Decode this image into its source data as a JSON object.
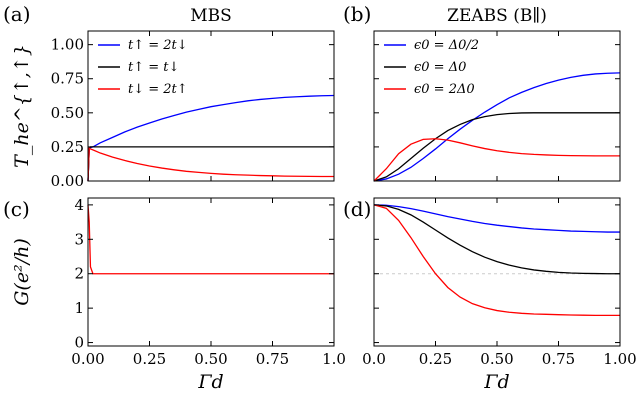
{
  "chart_data": [
    {
      "panel": "a",
      "panel_label": "(a)",
      "type": "line",
      "title": "MBS",
      "ylabel": "T_he^{↑,↑}",
      "xlabel": "",
      "xlim": [
        0,
        1
      ],
      "ylim": [
        0,
        1.1
      ],
      "xticks": [
        0,
        0.25,
        0.5,
        0.75,
        1.0
      ],
      "yticks": [
        0,
        0.25,
        0.5,
        0.75,
        1.0
      ],
      "ytick_labels": [
        "0.00",
        "0.25",
        "0.50",
        "0.75",
        "1.00"
      ],
      "xtick_labels": [],
      "legend_position": "top-left",
      "series": [
        {
          "name": "t↑ = 2t↓",
          "color": "#0000ff",
          "x": [
            0,
            0.005,
            0.01,
            0.02,
            0.05,
            0.1,
            0.15,
            0.2,
            0.25,
            0.3,
            0.35,
            0.4,
            0.45,
            0.5,
            0.55,
            0.6,
            0.65,
            0.7,
            0.75,
            0.8,
            0.85,
            0.9,
            0.95,
            1.0
          ],
          "y": [
            0,
            0.24,
            0.245,
            0.25,
            0.28,
            0.32,
            0.36,
            0.395,
            0.425,
            0.455,
            0.48,
            0.505,
            0.525,
            0.545,
            0.56,
            0.575,
            0.588,
            0.598,
            0.606,
            0.613,
            0.618,
            0.622,
            0.625,
            0.627
          ]
        },
        {
          "name": "t↑ = t↓",
          "color": "#000000",
          "x": [
            0,
            0.005,
            0.01,
            0.05,
            0.25,
            0.5,
            0.75,
            1.0
          ],
          "y": [
            0,
            0.24,
            0.25,
            0.25,
            0.25,
            0.25,
            0.25,
            0.25
          ]
        },
        {
          "name": "t↓ = 2t↑",
          "color": "#ff0000",
          "x": [
            0,
            0.005,
            0.01,
            0.02,
            0.05,
            0.1,
            0.15,
            0.2,
            0.25,
            0.3,
            0.35,
            0.4,
            0.45,
            0.5,
            0.55,
            0.6,
            0.65,
            0.7,
            0.75,
            0.8,
            0.85,
            0.9,
            0.95,
            1.0
          ],
          "y": [
            0,
            0.24,
            0.235,
            0.228,
            0.205,
            0.175,
            0.15,
            0.128,
            0.11,
            0.095,
            0.082,
            0.071,
            0.063,
            0.056,
            0.05,
            0.046,
            0.043,
            0.04,
            0.038,
            0.036,
            0.035,
            0.034,
            0.033,
            0.033
          ]
        }
      ]
    },
    {
      "panel": "b",
      "panel_label": "(b)",
      "type": "line",
      "title": "ZEABS (B∥)",
      "ylabel": "",
      "xlabel": "",
      "xlim": [
        0,
        1
      ],
      "ylim": [
        0,
        1.1
      ],
      "xticks": [
        0,
        0.25,
        0.5,
        0.75,
        1.0
      ],
      "yticks": [
        0,
        0.25,
        0.5,
        0.75,
        1.0
      ],
      "ytick_labels": [],
      "xtick_labels": [],
      "legend_position": "top-left",
      "series": [
        {
          "name": "ϵ0 = Δ0/2",
          "color": "#0000ff",
          "x": [
            0,
            0.05,
            0.1,
            0.15,
            0.2,
            0.25,
            0.3,
            0.35,
            0.4,
            0.45,
            0.5,
            0.55,
            0.6,
            0.65,
            0.7,
            0.75,
            0.8,
            0.85,
            0.9,
            0.95,
            1.0
          ],
          "y": [
            0,
            0.015,
            0.05,
            0.1,
            0.165,
            0.235,
            0.31,
            0.38,
            0.445,
            0.505,
            0.56,
            0.61,
            0.65,
            0.685,
            0.715,
            0.74,
            0.76,
            0.775,
            0.785,
            0.79,
            0.793
          ]
        },
        {
          "name": "ϵ0 = Δ0",
          "color": "#000000",
          "x": [
            0,
            0.05,
            0.1,
            0.15,
            0.2,
            0.25,
            0.3,
            0.35,
            0.4,
            0.45,
            0.5,
            0.55,
            0.6,
            0.65,
            0.7,
            0.75,
            0.8,
            0.85,
            0.9,
            0.95,
            1.0
          ],
          "y": [
            0,
            0.03,
            0.09,
            0.165,
            0.24,
            0.31,
            0.37,
            0.415,
            0.45,
            0.472,
            0.487,
            0.495,
            0.499,
            0.5,
            0.5,
            0.5,
            0.5,
            0.5,
            0.5,
            0.5,
            0.5
          ]
        },
        {
          "name": "ϵ0 = 2Δ0",
          "color": "#ff0000",
          "x": [
            0,
            0.05,
            0.1,
            0.15,
            0.2,
            0.25,
            0.3,
            0.35,
            0.4,
            0.45,
            0.5,
            0.55,
            0.6,
            0.65,
            0.7,
            0.75,
            0.8,
            0.85,
            0.9,
            0.95,
            1.0
          ],
          "y": [
            0,
            0.09,
            0.2,
            0.27,
            0.305,
            0.31,
            0.3,
            0.28,
            0.258,
            0.238,
            0.222,
            0.21,
            0.201,
            0.195,
            0.191,
            0.188,
            0.186,
            0.185,
            0.184,
            0.184,
            0.184
          ]
        }
      ]
    },
    {
      "panel": "c",
      "panel_label": "(c)",
      "type": "line",
      "title": "",
      "ylabel": "G(e²/h)",
      "xlabel": "Γd",
      "xlim": [
        0,
        1
      ],
      "ylim": [
        -0.1,
        4.2
      ],
      "xticks": [
        0,
        0.25,
        0.5,
        0.75,
        1.0
      ],
      "xtick_labels": [
        "0.00",
        "0.25",
        "0.50",
        "0.75",
        "1.0"
      ],
      "yticks": [
        0,
        1,
        2,
        3,
        4
      ],
      "ytick_labels": [
        "0",
        "1",
        "2",
        "3",
        "4"
      ],
      "series": [
        {
          "name": "",
          "color": "#ff0000",
          "x": [
            0,
            0.005,
            0.01,
            0.02,
            0.25,
            0.5,
            0.75,
            1.0
          ],
          "y": [
            4,
            3.5,
            2.2,
            2,
            2,
            2,
            2,
            2
          ]
        }
      ]
    },
    {
      "panel": "d",
      "panel_label": "(d)",
      "type": "line",
      "title": "",
      "ylabel": "",
      "xlabel": "Γd",
      "xlim": [
        0,
        1
      ],
      "ylim": [
        -0.1,
        4.2
      ],
      "xticks": [
        0,
        0.25,
        0.5,
        0.75,
        1.0
      ],
      "xtick_labels": [
        "0.0",
        "0.25",
        "0.50",
        "0.75",
        "1.00"
      ],
      "yticks": [
        0,
        1,
        2,
        3,
        4
      ],
      "ytick_labels": [],
      "reference_line": 2,
      "series": [
        {
          "name": "",
          "color": "#0000ff",
          "x": [
            0,
            0.05,
            0.1,
            0.15,
            0.2,
            0.25,
            0.3,
            0.35,
            0.4,
            0.45,
            0.5,
            0.55,
            0.6,
            0.65,
            0.7,
            0.75,
            0.8,
            0.85,
            0.9,
            0.95,
            1.0
          ],
          "y": [
            4,
            3.99,
            3.95,
            3.89,
            3.82,
            3.74,
            3.66,
            3.59,
            3.52,
            3.46,
            3.41,
            3.37,
            3.33,
            3.3,
            3.28,
            3.26,
            3.24,
            3.23,
            3.22,
            3.21,
            3.21
          ]
        },
        {
          "name": "",
          "color": "#000000",
          "x": [
            0,
            0.05,
            0.1,
            0.15,
            0.2,
            0.25,
            0.3,
            0.35,
            0.4,
            0.45,
            0.5,
            0.55,
            0.6,
            0.65,
            0.7,
            0.75,
            0.8,
            0.85,
            0.9,
            0.95,
            1.0
          ],
          "y": [
            4,
            3.97,
            3.87,
            3.71,
            3.5,
            3.27,
            3.04,
            2.83,
            2.64,
            2.48,
            2.35,
            2.25,
            2.17,
            2.11,
            2.07,
            2.04,
            2.02,
            2.01,
            2.005,
            2.0,
            2.0
          ]
        },
        {
          "name": "",
          "color": "#ff0000",
          "x": [
            0,
            0.05,
            0.1,
            0.15,
            0.2,
            0.25,
            0.3,
            0.35,
            0.4,
            0.45,
            0.5,
            0.55,
            0.6,
            0.65,
            0.7,
            0.75,
            0.8,
            0.85,
            0.9,
            0.95,
            1.0
          ],
          "y": [
            4,
            3.9,
            3.55,
            3.05,
            2.5,
            2.0,
            1.6,
            1.32,
            1.13,
            1.01,
            0.93,
            0.88,
            0.85,
            0.83,
            0.82,
            0.81,
            0.8,
            0.795,
            0.79,
            0.79,
            0.79
          ]
        }
      ]
    }
  ]
}
